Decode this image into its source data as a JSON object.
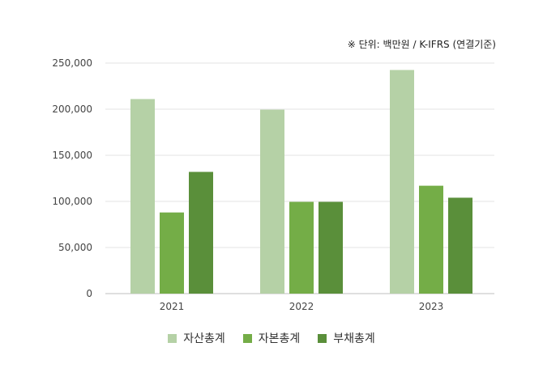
{
  "unit_note": "※ 단위: 백만원 / K-IFRS (연결기준)",
  "chart_data": {
    "type": "bar",
    "categories": [
      "2021",
      "2022",
      "2023"
    ],
    "series": [
      {
        "name": "자산총계",
        "color": "#b5d1a6",
        "values": [
          211000,
          199500,
          242500
        ]
      },
      {
        "name": "자본총계",
        "color": "#74ad47",
        "values": [
          88000,
          99500,
          117000
        ]
      },
      {
        "name": "부채총계",
        "color": "#5a8f3a",
        "values": [
          132000,
          99500,
          104000
        ]
      }
    ],
    "ylim": [
      0,
      250000
    ],
    "yticks": [
      0,
      50000,
      100000,
      150000,
      200000,
      250000
    ],
    "ytick_labels": [
      "0",
      "50,000",
      "100,000",
      "150,000",
      "200,000",
      "250,000"
    ],
    "grid": true,
    "legend_position": "bottom"
  }
}
